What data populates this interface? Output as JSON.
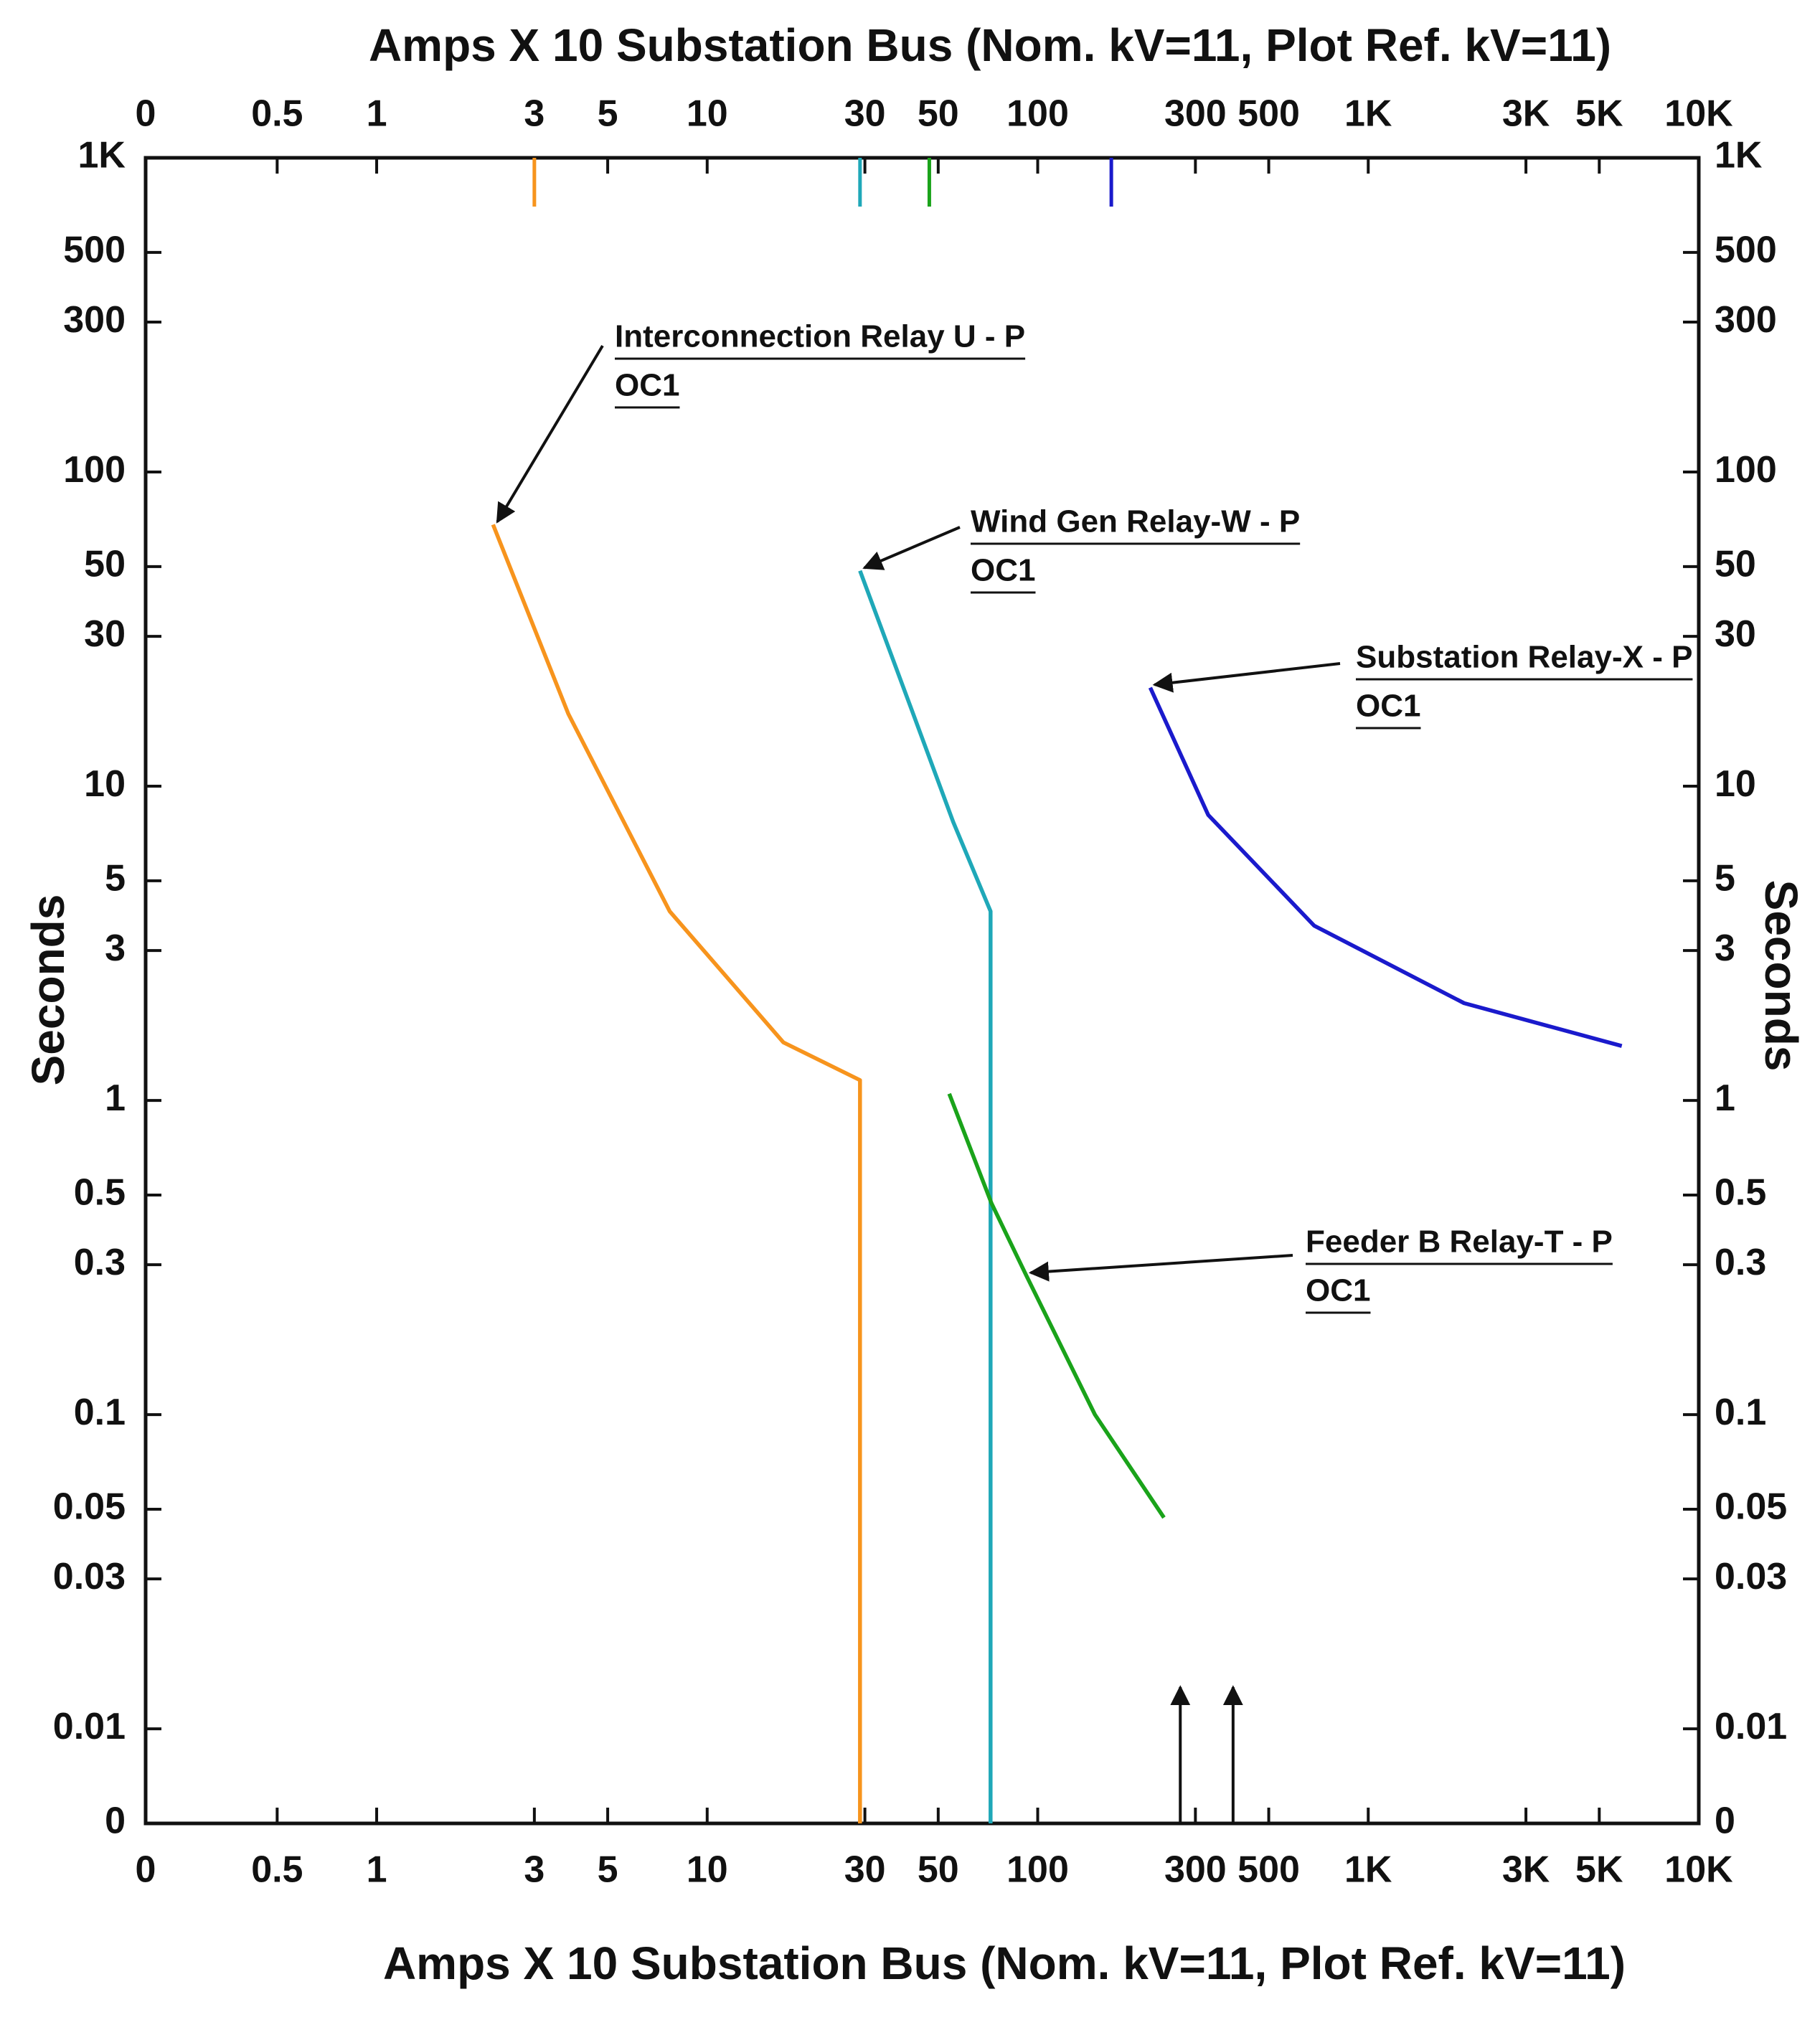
{
  "chart_data": {
    "type": "line",
    "title": "Amps  X 10   Substation Bus (Nom. kV=11, Plot Ref. kV=11)",
    "xlabel": "Amps  X 10   Substation Bus (Nom. kV=11, Plot Ref. kV=11)",
    "ylabel": "Seconds",
    "y2label": "Seconds",
    "log_x": true,
    "log_y": true,
    "xlim": [
      0.2,
      10000
    ],
    "ylim": [
      0.005,
      1000
    ],
    "xticks": [
      {
        "value": 0.2,
        "label": "0"
      },
      0.5,
      1,
      3,
      5,
      10,
      30,
      50,
      100,
      300,
      500,
      {
        "value": 1000,
        "label": "1K"
      },
      {
        "value": 3000,
        "label": "3K"
      },
      {
        "value": 5000,
        "label": "5K"
      },
      {
        "value": 10000,
        "label": "10K"
      }
    ],
    "yticks": [
      {
        "value": 1000,
        "label": "1K"
      },
      500,
      300,
      100,
      50,
      30,
      10,
      5,
      3,
      1,
      0.5,
      0.3,
      0.1,
      0.05,
      0.03,
      0.01,
      {
        "value": 0.005,
        "label": "0"
      }
    ],
    "series": [
      {
        "name": "Interconnection Relay U - P",
        "color": "#f7941d",
        "pickup": 3,
        "x": [
          2.25,
          3.8,
          7.7,
          17,
          29,
          29
        ],
        "values": [
          68,
          17,
          4,
          1.53,
          1.16,
          0.005
        ]
      },
      {
        "name": "Wind Gen Relay-W - P",
        "color": "#1fa8b8",
        "pickup": 29,
        "x": [
          29,
          42,
          55.5,
          72,
          72
        ],
        "values": [
          48.5,
          17,
          7.7,
          4,
          0.005
        ]
      },
      {
        "name": "Substation Relay-X - P",
        "color": "#1a1acc",
        "pickup": 167,
        "x": [
          219,
          328,
          686,
          1950,
          5850
        ],
        "values": [
          20.6,
          8.1,
          3.6,
          2.04,
          1.49
        ]
      },
      {
        "name": "Feeder B Relay-T - P",
        "color": "#1aa31a",
        "pickup": 47,
        "x": [
          54,
          72.5,
          92.4,
          149,
          241
        ],
        "values": [
          1.05,
          0.47,
          0.277,
          0.1,
          0.047
        ]
      }
    ],
    "annotations": [
      {
        "text": "Interconnection Relay U - P",
        "subtext": "OC1"
      },
      {
        "text": "Wind Gen Relay-W - P",
        "subtext": "OC1"
      },
      {
        "text": "Substation Relay-X - P",
        "subtext": "OC1"
      },
      {
        "text": "Feeder B Relay-T - P",
        "subtext": "OC1"
      }
    ],
    "fault_markers": [
      270,
      390
    ]
  }
}
